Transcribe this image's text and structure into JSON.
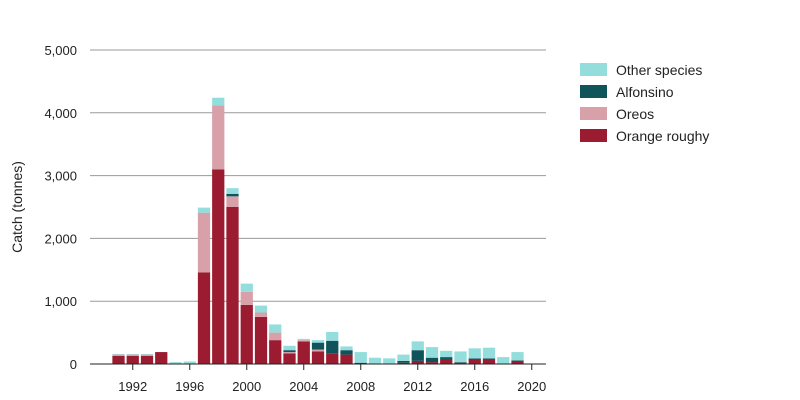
{
  "chart_data": {
    "type": "bar",
    "stacked": true,
    "xlabel": "",
    "ylabel": "Catch (tonnes)",
    "ylim": [
      0,
      5000
    ],
    "yticks": [
      0,
      1000,
      2000,
      3000,
      4000,
      5000
    ],
    "ytick_labels": [
      "0",
      "1,000",
      "2,000",
      "3,000",
      "4,000",
      "5,000"
    ],
    "xlim": [
      1989,
      2021
    ],
    "xticks": [
      1992,
      1996,
      2000,
      2004,
      2008,
      2012,
      2016,
      2020
    ],
    "xtick_labels": [
      "1992",
      "1996",
      "2000",
      "2004",
      "2008",
      "2012",
      "2016",
      "2020"
    ],
    "grid": true,
    "legend_position": "top-right",
    "x": [
      1991,
      1992,
      1993,
      1994,
      1995,
      1996,
      1997,
      1998,
      1999,
      2000,
      2001,
      2002,
      2003,
      2004,
      2005,
      2006,
      2007,
      2008,
      2009,
      2010,
      2011,
      2012,
      2013,
      2014,
      2015,
      2016,
      2017,
      2018,
      2019
    ],
    "series": [
      {
        "name": "Orange roughy",
        "color": "#9b1b30",
        "values": [
          130,
          130,
          130,
          190,
          0,
          0,
          1460,
          3100,
          2500,
          940,
          750,
          380,
          170,
          360,
          200,
          170,
          150,
          0,
          0,
          0,
          20,
          50,
          30,
          80,
          20,
          80,
          80,
          0,
          50
        ]
      },
      {
        "name": "Oreos",
        "color": "#d8a1a9",
        "values": [
          20,
          20,
          20,
          0,
          0,
          0,
          950,
          1020,
          170,
          210,
          70,
          120,
          20,
          20,
          30,
          0,
          0,
          0,
          0,
          0,
          0,
          0,
          0,
          0,
          0,
          0,
          0,
          0,
          0
        ]
      },
      {
        "name": "Alfonsino",
        "color": "#0f535b",
        "values": [
          0,
          0,
          0,
          0,
          0,
          0,
          0,
          0,
          40,
          0,
          0,
          0,
          30,
          0,
          110,
          200,
          70,
          20,
          0,
          0,
          30,
          170,
          70,
          30,
          10,
          10,
          10,
          0,
          10
        ]
      },
      {
        "name": "Other species",
        "color": "#93dedd",
        "values": [
          10,
          10,
          10,
          0,
          30,
          40,
          80,
          120,
          90,
          130,
          110,
          130,
          70,
          20,
          40,
          140,
          60,
          170,
          100,
          90,
          100,
          140,
          170,
          100,
          170,
          160,
          170,
          110,
          130
        ]
      }
    ]
  }
}
